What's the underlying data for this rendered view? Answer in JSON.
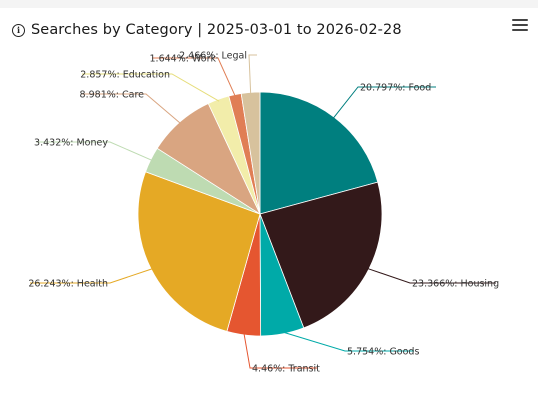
{
  "header": {
    "title": "Searches by Category | 2025-03-01 to 2026-02-28",
    "info_icon": "info-icon",
    "menu_icon": "hamburger-menu-icon"
  },
  "chart_data": {
    "type": "pie",
    "title": "Searches by Category | 2025-03-01 to 2026-02-28",
    "slices": [
      {
        "name": "Food",
        "value": 20.797,
        "label": "20.797%: Food",
        "color": "#007f7f"
      },
      {
        "name": "Housing",
        "value": 23.366,
        "label": "23.366%: Housing",
        "color": "#33191a"
      },
      {
        "name": "Goods",
        "value": 5.754,
        "label": "5.754%: Goods",
        "color": "#00aaa8"
      },
      {
        "name": "Transit",
        "value": 4.46,
        "label": "4.46%: Transit",
        "color": "#e55630"
      },
      {
        "name": "Health",
        "value": 26.243,
        "label": "26.243%: Health",
        "color": "#e5a925"
      },
      {
        "name": "Money",
        "value": 3.432,
        "label": "3.432%: Money",
        "color": "#bedbb2"
      },
      {
        "name": "Care",
        "value": 8.981,
        "label": "8.981%: Care",
        "color": "#d9a581"
      },
      {
        "name": "Education",
        "value": 2.857,
        "label": "2.857%: Education",
        "color": "#f2edaa"
      },
      {
        "name": "Work",
        "value": 1.644,
        "label": "1.644%: Work",
        "color": "#e07e55"
      },
      {
        "name": "Legal",
        "value": 2.466,
        "label": "2.466%: Legal",
        "color": "#d7c29d"
      }
    ]
  }
}
